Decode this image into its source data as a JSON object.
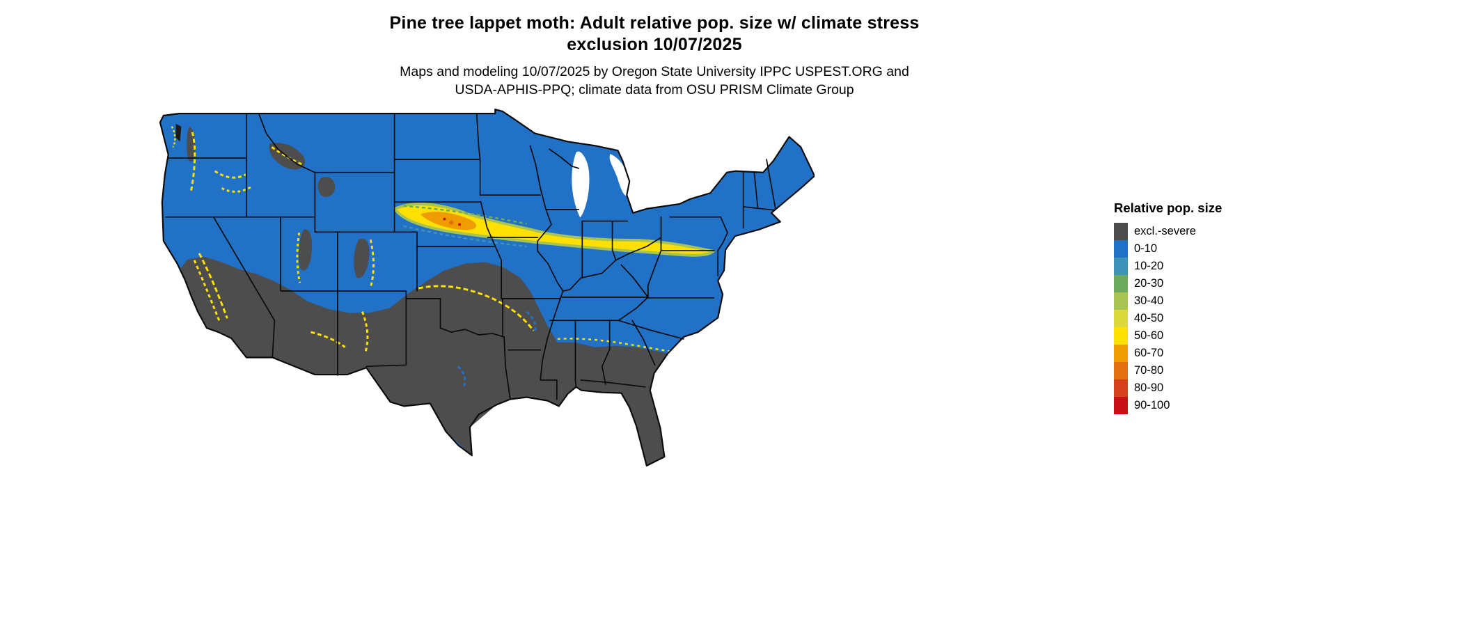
{
  "title": {
    "line1": "Pine tree lappet moth: Adult relative pop. size w/ climate stress",
    "line2": "exclusion 10/07/2025"
  },
  "subtitle": {
    "line1": "Maps and modeling 10/07/2025 by Oregon State University IPPC USPEST.ORG and",
    "line2": "USDA-APHIS-PPQ; climate data from OSU PRISM Climate Group"
  },
  "legend": {
    "title": "Relative pop. size",
    "items": [
      {
        "label": "excl.-severe",
        "color": "#4d4d4d"
      },
      {
        "label": "0-10",
        "color": "#2171c7"
      },
      {
        "label": "10-20",
        "color": "#3d93b8"
      },
      {
        "label": "20-30",
        "color": "#6cab5e"
      },
      {
        "label": "30-40",
        "color": "#a9c352"
      },
      {
        "label": "40-50",
        "color": "#dcd93a"
      },
      {
        "label": "50-60",
        "color": "#ffe000"
      },
      {
        "label": "60-70",
        "color": "#ef9c00"
      },
      {
        "label": "70-80",
        "color": "#e36f10"
      },
      {
        "label": "80-90",
        "color": "#d6411e"
      },
      {
        "label": "90-100",
        "color": "#c81116"
      }
    ]
  }
}
